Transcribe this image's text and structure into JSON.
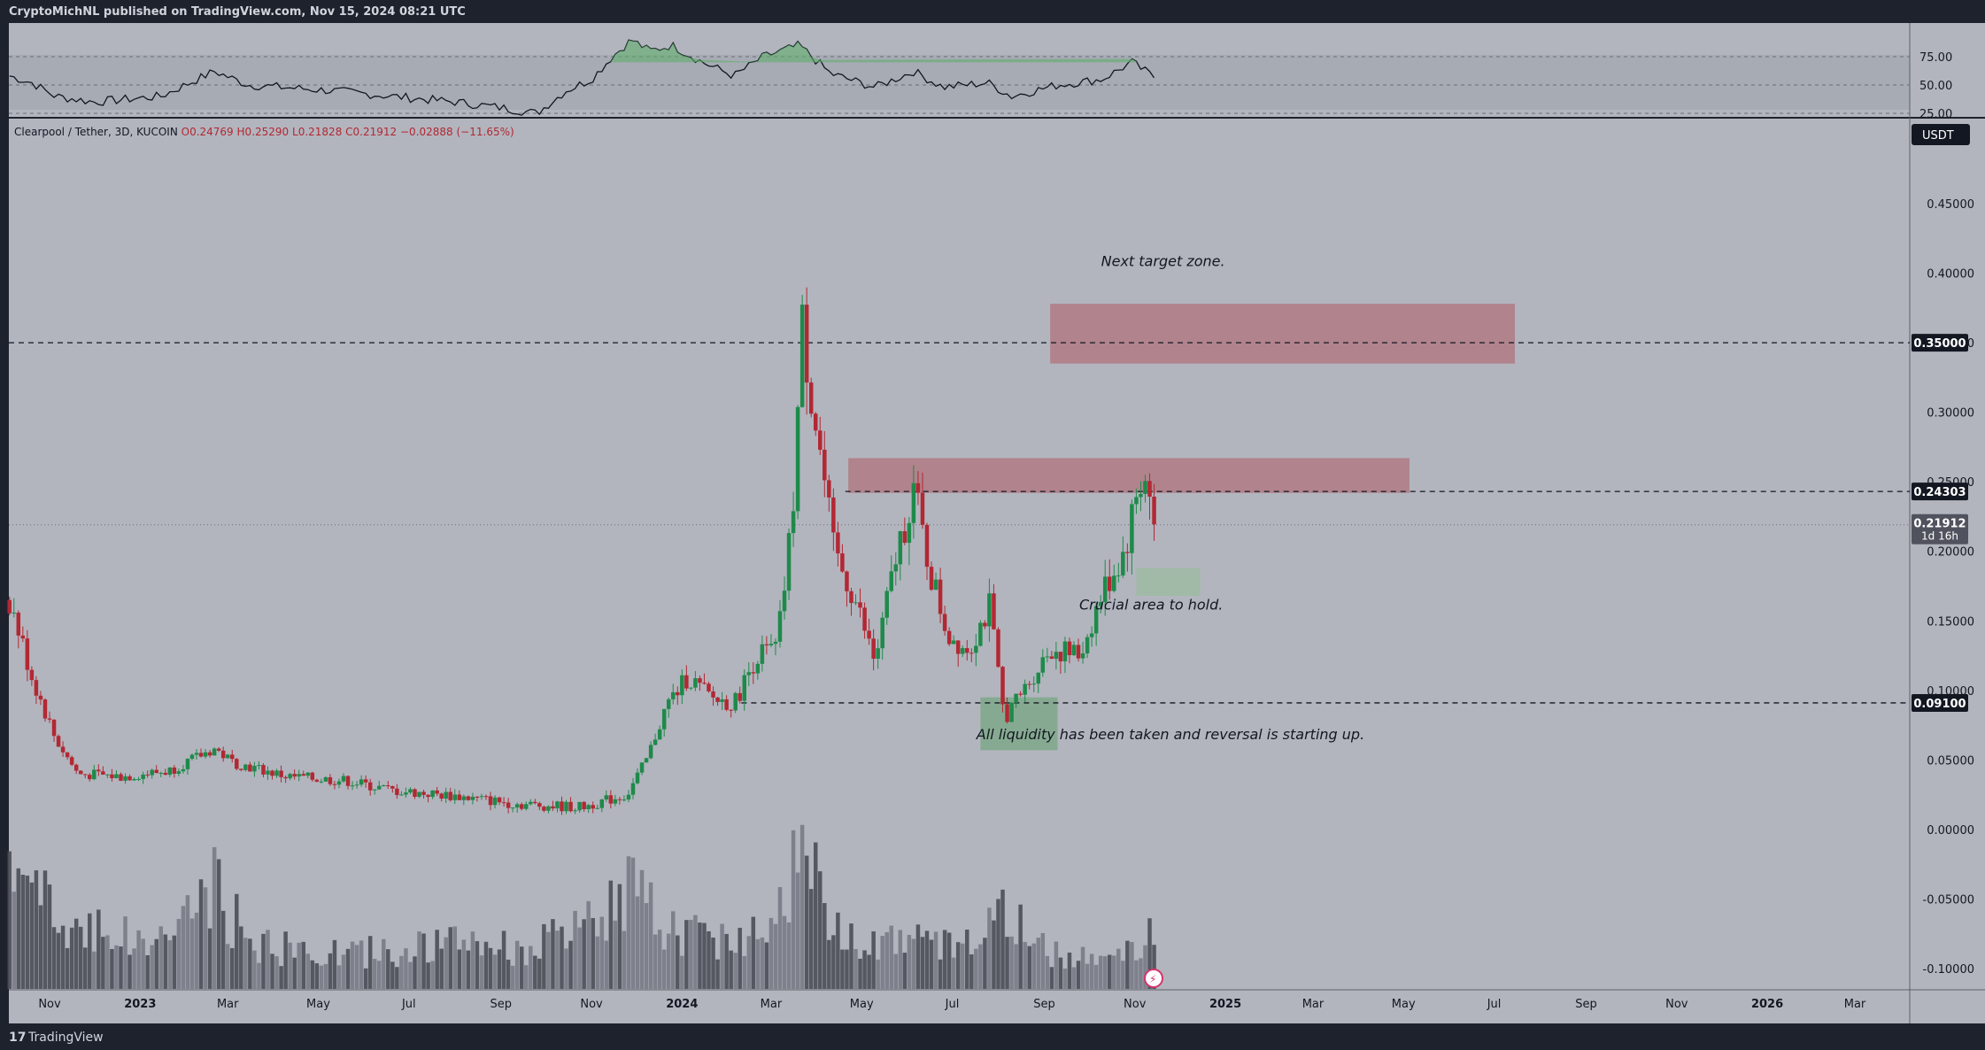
{
  "header": {
    "published_text": "CryptoMichNL published on TradingView.com, Nov 15, 2024 08:21 UTC"
  },
  "symbol": {
    "description": "Clearpool / Tether, 3D, KUCOIN",
    "open": "O0.24769",
    "high": "H0.25290",
    "low": "L0.21828",
    "close": "C0.21912",
    "change": "−0.02888 (−11.65%)"
  },
  "currency_label": "USDT",
  "footer": {
    "brand": "TradingView",
    "logo_icon": "tradingview-logo-icon"
  },
  "chart_data": {
    "type": "candlestick",
    "y_axis": {
      "ticks": [
        "0.45000",
        "0.40000",
        "0.35000",
        "0.30000",
        "0.25000",
        "0.20000",
        "0.15000",
        "0.10000",
        "0.05000",
        "0.00000",
        "-0.05000",
        "-0.10000"
      ],
      "tick_values": [
        0.45,
        0.4,
        0.35,
        0.3,
        0.25,
        0.2,
        0.15,
        0.1,
        0.05,
        0.0,
        -0.05,
        -0.1
      ]
    },
    "x_axis": {
      "ticks": [
        "Nov",
        "2023",
        "Mar",
        "May",
        "Jul",
        "Sep",
        "Nov",
        "2024",
        "Mar",
        "May",
        "Jul",
        "Sep",
        "Nov",
        "2025",
        "Mar",
        "May",
        "Jul",
        "Sep",
        "Nov",
        "2026",
        "Mar"
      ],
      "tick_dates": [
        "2022-11-01",
        "2023-01-01",
        "2023-03-01",
        "2023-05-01",
        "2023-07-01",
        "2023-09-01",
        "2023-11-01",
        "2024-01-01",
        "2024-03-01",
        "2024-05-01",
        "2024-07-01",
        "2024-09-01",
        "2024-11-01",
        "2025-01-01",
        "2025-03-01",
        "2025-05-01",
        "2025-07-01",
        "2025-09-01",
        "2025-11-01",
        "2026-01-01",
        "2026-03-01"
      ]
    },
    "price_path": [
      [
        "2022-10-05",
        0.165
      ],
      [
        "2022-10-20",
        0.11
      ],
      [
        "2022-11-05",
        0.065
      ],
      [
        "2022-11-20",
        0.04
      ],
      [
        "2022-12-20",
        0.038
      ],
      [
        "2023-01-20",
        0.042
      ],
      [
        "2023-02-20",
        0.058
      ],
      [
        "2023-03-05",
        0.048
      ],
      [
        "2023-04-10",
        0.038
      ],
      [
        "2023-05-20",
        0.035
      ],
      [
        "2023-06-20",
        0.028
      ],
      [
        "2023-08-01",
        0.024
      ],
      [
        "2023-09-15",
        0.018
      ],
      [
        "2023-10-25",
        0.016
      ],
      [
        "2023-11-25",
        0.025
      ],
      [
        "2023-12-08",
        0.05
      ],
      [
        "2023-12-22",
        0.09
      ],
      [
        "2024-01-05",
        0.11
      ],
      [
        "2024-01-20",
        0.095
      ],
      [
        "2024-02-05",
        0.09
      ],
      [
        "2024-02-20",
        0.125
      ],
      [
        "2024-03-05",
        0.13
      ],
      [
        "2024-03-15",
        0.22
      ],
      [
        "2024-03-22",
        0.36
      ],
      [
        "2024-04-02",
        0.28
      ],
      [
        "2024-04-12",
        0.2
      ],
      [
        "2024-04-25",
        0.17
      ],
      [
        "2024-05-10",
        0.12
      ],
      [
        "2024-05-25",
        0.2
      ],
      [
        "2024-06-05",
        0.245
      ],
      [
        "2024-06-15",
        0.19
      ],
      [
        "2024-06-28",
        0.14
      ],
      [
        "2024-07-12",
        0.13
      ],
      [
        "2024-07-26",
        0.16
      ],
      [
        "2024-08-05",
        0.08
      ],
      [
        "2024-08-18",
        0.1
      ],
      [
        "2024-09-05",
        0.13
      ],
      [
        "2024-09-25",
        0.125
      ],
      [
        "2024-10-10",
        0.17
      ],
      [
        "2024-10-25",
        0.2
      ],
      [
        "2024-11-03",
        0.245
      ],
      [
        "2024-11-08",
        0.255
      ],
      [
        "2024-11-14",
        0.219
      ]
    ],
    "current_price": 0.21912,
    "price_labels": [
      {
        "text": "0.35000",
        "value": 0.35
      },
      {
        "text": "0.24303",
        "value": 0.24303
      },
      {
        "text": "0.09100",
        "value": 0.091
      }
    ],
    "last_price_label": {
      "price": "0.21912",
      "countdown": "1d 16h"
    },
    "zones": [
      {
        "type": "resistance",
        "from": "2024-09-05",
        "to": "2025-07-15",
        "low": 0.335,
        "high": 0.378,
        "color": "#b07a84"
      },
      {
        "type": "resistance",
        "from": "2024-04-22",
        "to": "2025-05-05",
        "low": 0.242,
        "high": 0.267,
        "color": "#b07a84"
      },
      {
        "type": "support",
        "from": "2024-11-02",
        "to": "2024-12-15",
        "low": 0.168,
        "high": 0.188,
        "color": "#9dbba5"
      },
      {
        "type": "support",
        "from": "2024-07-20",
        "to": "2024-09-10",
        "low": 0.057,
        "high": 0.095,
        "color": "#7ea88a"
      }
    ],
    "annotations": [
      {
        "text": "Next target zone.",
        "date": "2024-11-20",
        "value": 0.405
      },
      {
        "text": "Crucial area to hold.",
        "date": "2024-11-12",
        "value": 0.158
      },
      {
        "text": "All liquidity has been taken and reversal is starting up.",
        "date": "2024-11-25",
        "value": 0.065
      }
    ],
    "rsi": {
      "levels": [
        75,
        50,
        25
      ],
      "tick_labels": [
        "75.00",
        "50.00",
        "25.00"
      ],
      "path": [
        [
          "2022-10-05",
          58
        ],
        [
          "2022-10-20",
          52
        ],
        [
          "2022-11-05",
          40
        ],
        [
          "2022-12-01",
          35
        ],
        [
          "2023-01-15",
          40
        ],
        [
          "2023-02-20",
          62
        ],
        [
          "2023-03-15",
          50
        ],
        [
          "2023-05-10",
          45
        ],
        [
          "2023-06-20",
          40
        ],
        [
          "2023-08-01",
          35
        ],
        [
          "2023-09-01",
          30
        ],
        [
          "2023-09-25",
          25
        ],
        [
          "2023-10-15",
          45
        ],
        [
          "2023-11-01",
          55
        ],
        [
          "2023-11-15",
          75
        ],
        [
          "2023-11-28",
          90
        ],
        [
          "2023-12-10",
          80
        ],
        [
          "2023-12-25",
          85
        ],
        [
          "2024-01-15",
          70
        ],
        [
          "2024-02-05",
          58
        ],
        [
          "2024-02-25",
          75
        ],
        [
          "2024-03-20",
          85
        ],
        [
          "2024-04-10",
          60
        ],
        [
          "2024-05-10",
          48
        ],
        [
          "2024-06-05",
          62
        ],
        [
          "2024-06-25",
          48
        ],
        [
          "2024-07-25",
          52
        ],
        [
          "2024-08-10",
          40
        ],
        [
          "2024-09-10",
          50
        ],
        [
          "2024-10-10",
          55
        ],
        [
          "2024-10-30",
          70
        ],
        [
          "2024-11-14",
          57
        ]
      ]
    },
    "volume": [
      [
        "2022-10-05",
        0.6
      ],
      [
        "2022-10-25",
        0.5
      ],
      [
        "2022-11-10",
        0.3
      ],
      [
        "2022-12-01",
        0.35
      ],
      [
        "2023-01-05",
        0.22
      ],
      [
        "2023-02-01",
        0.38
      ],
      [
        "2023-02-20",
        0.52
      ],
      [
        "2023-03-15",
        0.25
      ],
      [
        "2023-04-15",
        0.2
      ],
      [
        "2023-05-15",
        0.18
      ],
      [
        "2023-06-15",
        0.2
      ],
      [
        "2023-07-15",
        0.22
      ],
      [
        "2023-08-15",
        0.25
      ],
      [
        "2023-09-15",
        0.2
      ],
      [
        "2023-10-15",
        0.28
      ],
      [
        "2023-11-05",
        0.35
      ],
      [
        "2023-11-25",
        0.55
      ],
      [
        "2023-12-10",
        0.4
      ],
      [
        "2023-12-28",
        0.3
      ],
      [
        "2024-01-20",
        0.28
      ],
      [
        "2024-02-10",
        0.25
      ],
      [
        "2024-02-28",
        0.38
      ],
      [
        "2024-03-15",
        0.65
      ],
      [
        "2024-03-22",
        1.0
      ],
      [
        "2024-04-05",
        0.35
      ],
      [
        "2024-05-01",
        0.28
      ],
      [
        "2024-06-01",
        0.25
      ],
      [
        "2024-07-01",
        0.22
      ],
      [
        "2024-08-05",
        0.4
      ],
      [
        "2024-09-01",
        0.2
      ],
      [
        "2024-10-01",
        0.18
      ],
      [
        "2024-11-01",
        0.22
      ],
      [
        "2024-11-14",
        0.28
      ]
    ]
  }
}
